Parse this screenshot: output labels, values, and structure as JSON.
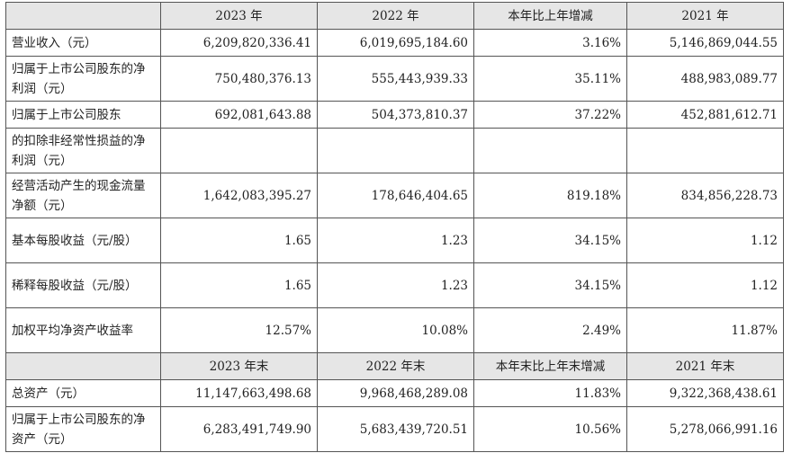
{
  "header1": [
    "",
    "2023 年",
    "2022 年",
    "本年比上年增减",
    "2021 年"
  ],
  "rows1": [
    [
      "营业收入（元）",
      "6,209,820,336.41",
      "6,019,695,184.60",
      "3.16%",
      "5,146,869,044.55"
    ],
    [
      "归属于上市公司股东的净利润（元）",
      "750,480,376.13",
      "555,443,939.33",
      "35.11%",
      "488,983,089.77"
    ],
    [
      "归属于上市公司股东",
      "692,081,643.88",
      "504,373,810.37",
      "37.22%",
      "452,881,612.71"
    ],
    [
      "的扣除非经常性损益的净利润（元）",
      "",
      "",
      "",
      ""
    ],
    [
      "经营活动产生的现金流量净额（元）",
      "1,642,083,395.27",
      "178,646,404.65",
      "819.18%",
      "834,856,228.73"
    ],
    [
      "基本每股收益（元/股）",
      "1.65",
      "1.23",
      "34.15%",
      "1.12"
    ],
    [
      "稀释每股收益（元/股）",
      "1.65",
      "1.23",
      "34.15%",
      "1.12"
    ],
    [
      "加权平均净资产收益率",
      "12.57%",
      "10.08%",
      "2.49%",
      "11.87%"
    ]
  ],
  "header2": [
    "",
    "2023 年末",
    "2022 年末",
    "本年末比上年末增减",
    "2021 年末"
  ],
  "rows2": [
    [
      "总资产（元）",
      "11,147,663,498.68",
      "9,968,468,289.08",
      "11.83%",
      "9,322,368,438.61"
    ],
    [
      "归属于上市公司股东的净资产（元）",
      "6,283,491,749.90",
      "5,683,439,720.51",
      "10.56%",
      "5,278,066,991.16"
    ]
  ]
}
